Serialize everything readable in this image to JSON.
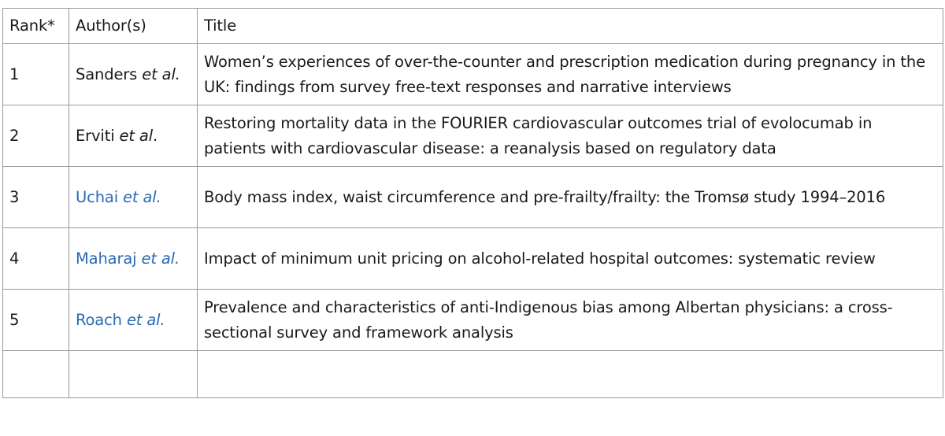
{
  "table": {
    "headers": {
      "rank": "Rank*",
      "authors": "Author(s)",
      "title": "Title"
    },
    "rows": [
      {
        "rank": "1",
        "author": "Sanders",
        "etal": "et al.",
        "linked": false,
        "title": "Women’s experiences of over-the-counter and prescription medication during pregnancy in the UK: findings from survey free-text responses and narrative interviews"
      },
      {
        "rank": "2",
        "author": "Erviti",
        "etal": "et al",
        "etal_suffix": ".",
        "linked": false,
        "title": "Restoring mortality data in the FOURIER cardiovascular outcomes trial of evolocumab in patients with cardiovascular disease: a reanalysis based on regulatory data"
      },
      {
        "rank": "3",
        "author": "Uchai",
        "etal": "et al.",
        "linked": true,
        "title": "Body mass index, waist circumference and pre-frailty/frailty: the Tromsø study 1994–2016"
      },
      {
        "rank": "4",
        "author": "Maharaj",
        "etal": "et al.",
        "linked": true,
        "title": "Impact of minimum unit pricing on alcohol-related hospital outcomes: systematic review"
      },
      {
        "rank": "5",
        "author": "Roach",
        "etal": "et al.",
        "linked": true,
        "title": "Prevalence and characteristics of anti-Indigenous bias among Albertan physicians: a cross-sectional survey and framework analysis"
      }
    ],
    "colors": {
      "link": "#2a6ab4",
      "border": "#9a9a9a",
      "text": "#1a1a1a"
    }
  }
}
